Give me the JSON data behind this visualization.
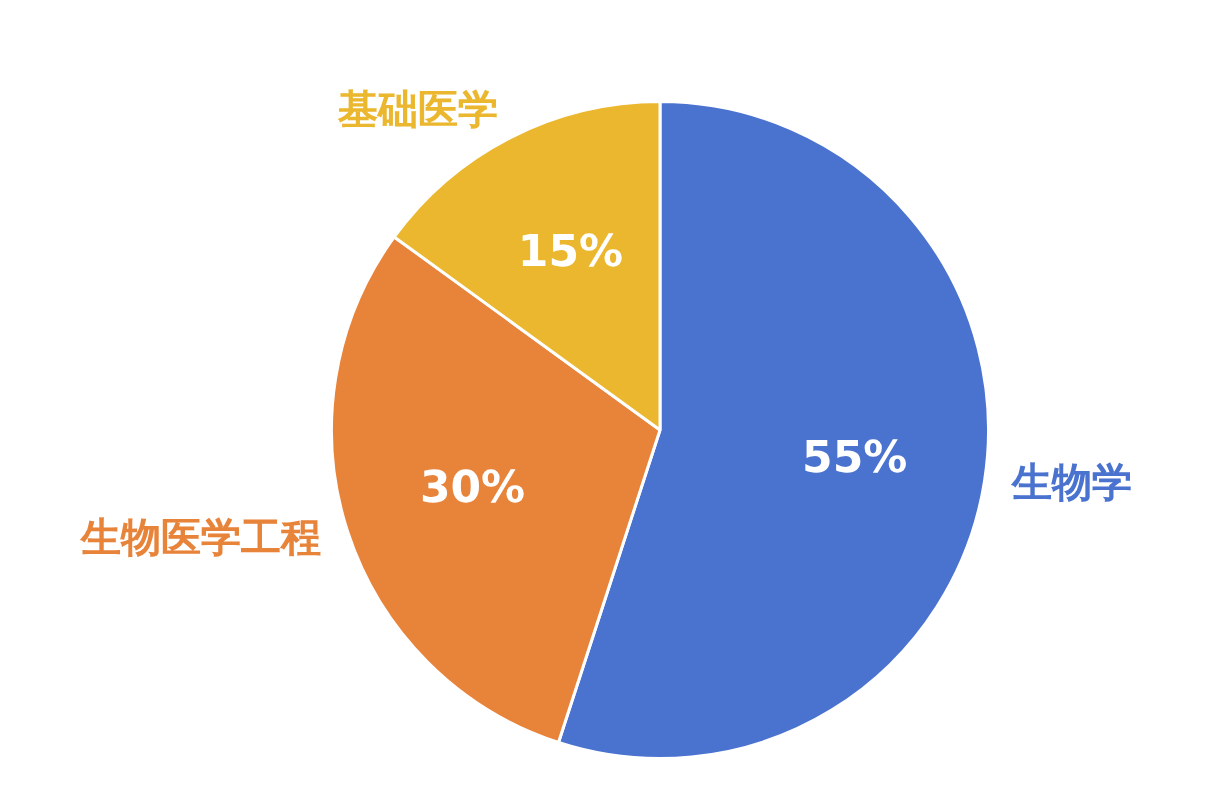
{
  "chart_data": {
    "type": "pie",
    "categories": [
      "生物学",
      "生物医学工程",
      "基础医学"
    ],
    "values": [
      55,
      30,
      15
    ],
    "colors": [
      "#4a72cf",
      "#e8833a",
      "#ebb72e"
    ],
    "value_labels": [
      "55%",
      "30%",
      "15%"
    ],
    "legend": false
  }
}
